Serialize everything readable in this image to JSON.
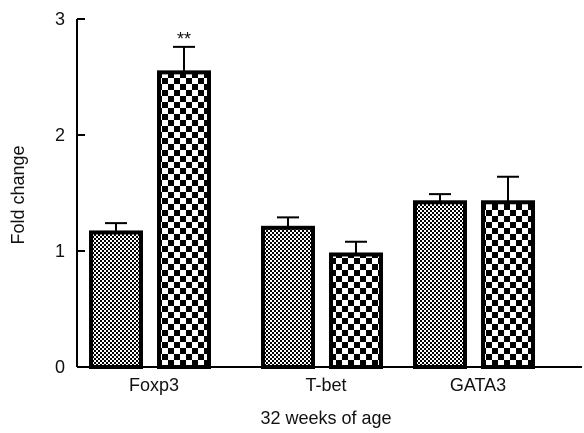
{
  "chart_data": {
    "type": "bar",
    "categories": [
      "Foxp3",
      "T-bet",
      "GATA3"
    ],
    "series": [
      {
        "pattern": "fine-checker",
        "values": [
          1.16,
          1.2,
          1.42
        ],
        "errors": [
          0.08,
          0.09,
          0.07
        ]
      },
      {
        "pattern": "coarse-checker",
        "values": [
          2.54,
          0.97,
          1.42
        ],
        "errors": [
          0.22,
          0.11,
          0.22
        ]
      }
    ],
    "annotations": [
      {
        "category": "Foxp3",
        "series": 1,
        "text": "**"
      }
    ],
    "xlabel": "32 weeks of age",
    "ylabel": "Fold change",
    "ylim": [
      0,
      3
    ],
    "yticks": [
      "0",
      "1",
      "2",
      "3"
    ],
    "grid": false,
    "colors": {
      "bar_edge": "#000000",
      "fill_dark": "#000000",
      "fill_light": "#ffffff"
    }
  }
}
